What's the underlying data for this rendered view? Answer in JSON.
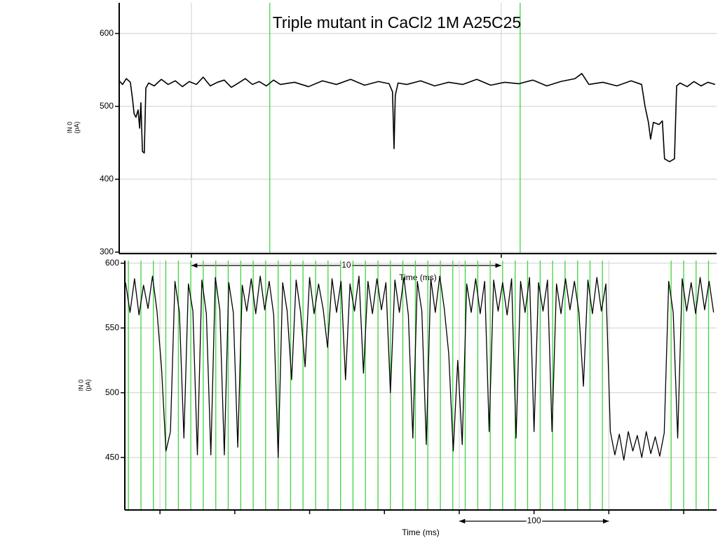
{
  "chart_data": [
    {
      "type": "line",
      "title": "Triple mutant in CaCl2 1M A25C25",
      "x_label": "Time (ms)",
      "y_label": [
        "IN 0",
        "(pA)"
      ],
      "color": "#000000",
      "x": [
        0,
        0.11,
        0.23,
        0.36,
        0.43,
        0.48,
        0.54,
        0.61,
        0.66,
        0.7,
        0.75,
        0.81,
        0.86,
        0.95,
        1.13,
        1.36,
        1.58,
        1.81,
        2.04,
        2.26,
        2.49,
        2.71,
        2.94,
        3.17,
        3.39,
        3.62,
        3.85,
        4.07,
        4.3,
        4.52,
        4.75,
        4.98,
        5.2,
        5.66,
        6.11,
        6.56,
        7.01,
        7.47,
        7.92,
        8.37,
        8.71,
        8.82,
        8.87,
        8.91,
        9.0,
        9.28,
        9.73,
        10.18,
        10.63,
        11.09,
        11.54,
        11.99,
        12.44,
        12.9,
        13.35,
        13.8,
        14.25,
        14.71,
        14.93,
        15.16,
        15.61,
        16.06,
        16.52,
        16.86,
        16.97,
        17.08,
        17.15,
        17.24,
        17.42,
        17.53,
        17.6,
        17.76,
        17.92,
        17.99,
        18.1,
        18.33,
        18.55,
        18.78,
        19.0,
        19.23
      ],
      "values": [
        535,
        530,
        538,
        533,
        510,
        490,
        485,
        495,
        470,
        505,
        438,
        436,
        525,
        532,
        528,
        537,
        530,
        535,
        527,
        534,
        530,
        540,
        528,
        533,
        536,
        526,
        532,
        538,
        530,
        534,
        528,
        536,
        530,
        533,
        527,
        535,
        530,
        537,
        529,
        534,
        531,
        520,
        442,
        515,
        532,
        530,
        535,
        528,
        533,
        530,
        537,
        529,
        533,
        531,
        536,
        528,
        534,
        538,
        545,
        530,
        533,
        528,
        535,
        530,
        500,
        478,
        455,
        478,
        475,
        480,
        428,
        424,
        428,
        528,
        532,
        527,
        534,
        528,
        533,
        530
      ],
      "xlim": [
        0,
        19.28
      ],
      "ylim": [
        298,
        642
      ],
      "yticks": [
        300,
        400,
        500,
        600
      ],
      "xticks": [
        2.33,
        12.33
      ],
      "grid": true,
      "markers": {
        "color": "#3fd43f",
        "x": [
          4.86,
          12.94
        ]
      },
      "scale_bar": {
        "label": "10",
        "from": 2.33,
        "to": 12.33
      }
    },
    {
      "type": "line",
      "x_label": "Time (ms)",
      "y_label": [
        "IN 0",
        "(pA)"
      ],
      "color": "#000000",
      "x": [
        -23,
        -20,
        -17,
        -14,
        -11,
        -8,
        -5,
        -2,
        1,
        4,
        7,
        10,
        13,
        16,
        19,
        22,
        25,
        28,
        31,
        34,
        37,
        40,
        43,
        46,
        49,
        52,
        55,
        58,
        61,
        64,
        67,
        70,
        73,
        76,
        79,
        82,
        85,
        88,
        91,
        94,
        97,
        100,
        103,
        106,
        109,
        112,
        115,
        118,
        121,
        124,
        127,
        130,
        133,
        136,
        139,
        142,
        145,
        148,
        151,
        154,
        157,
        160,
        163,
        166,
        169,
        172,
        175,
        178,
        181,
        184,
        187,
        190,
        193,
        196,
        199,
        202,
        205,
        208,
        211,
        214,
        217,
        220,
        223,
        226,
        229,
        232,
        235,
        238,
        241,
        244,
        247,
        250,
        253,
        256,
        259,
        262,
        265,
        268,
        271,
        274,
        277,
        280,
        283,
        286,
        289,
        292,
        295,
        298,
        301,
        304,
        307,
        310,
        313,
        316,
        319,
        322,
        325,
        328,
        331,
        334,
        337,
        340,
        343,
        346,
        349,
        352,
        355,
        358,
        361,
        364,
        367,
        370
      ],
      "values": [
        585,
        562,
        588,
        560,
        583,
        565,
        590,
        563,
        520,
        455,
        470,
        586,
        562,
        465,
        584,
        563,
        452,
        587,
        561,
        452,
        589,
        564,
        452,
        585,
        562,
        458,
        583,
        563,
        588,
        561,
        590,
        564,
        586,
        560,
        450,
        585,
        563,
        510,
        587,
        562,
        520,
        589,
        561,
        584,
        565,
        535,
        588,
        562,
        586,
        510,
        584,
        563,
        590,
        515,
        586,
        561,
        588,
        564,
        585,
        500,
        587,
        562,
        589,
        560,
        465,
        586,
        563,
        460,
        588,
        562,
        590,
        565,
        530,
        455,
        525,
        460,
        584,
        562,
        588,
        561,
        586,
        470,
        587,
        563,
        585,
        560,
        588,
        465,
        586,
        562,
        589,
        470,
        585,
        563,
        587,
        470,
        584,
        561,
        588,
        564,
        586,
        562,
        505,
        587,
        561,
        589,
        563,
        584,
        470,
        452,
        468,
        448,
        470,
        455,
        467,
        450,
        470,
        453,
        466,
        451,
        469,
        586,
        562,
        465,
        588,
        563,
        585,
        561,
        589,
        564,
        586,
        562
      ],
      "xlim": [
        -23.5,
        372
      ],
      "ylim": [
        409.5,
        602
      ],
      "yticks": [
        450,
        500,
        550,
        600
      ],
      "xticks": [
        0,
        50,
        100,
        150,
        200,
        250,
        300,
        350
      ],
      "xgrid": [
        0,
        200,
        300
      ],
      "grid": true,
      "markers": {
        "color": "#3fd43f",
        "x": [
          -21.1,
          -12.7,
          -4.4,
          3.9,
          12.3,
          20.6,
          28.9,
          37.3,
          45.6,
          54.0,
          62.3,
          70.6,
          79.0,
          87.3,
          95.6,
          104.0,
          112.3,
          120.7,
          129.0,
          137.3,
          145.7,
          154.0,
          162.3,
          170.7,
          179.0,
          187.4,
          195.7,
          204.0,
          212.4,
          220.7,
          229.0,
          237.4,
          245.7,
          254.1,
          262.4,
          270.7,
          279.1,
          287.4,
          295.7,
          341.6,
          350.0,
          358.3,
          366.6
        ]
      },
      "scale_bar": {
        "label": "100",
        "from": 200,
        "to": 300
      }
    }
  ]
}
